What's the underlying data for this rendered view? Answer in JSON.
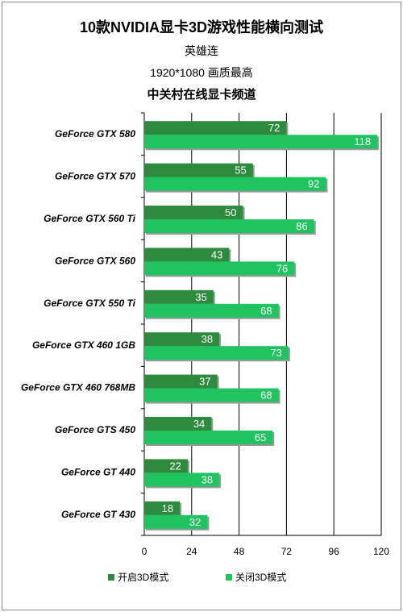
{
  "header": {
    "title": "10款NVIDIA显卡3D游戏性能横向测试",
    "line1": "英雄连",
    "line2": "1920*1080  画质最高",
    "line3": "中关村在线显卡频道"
  },
  "colors": {
    "series_on": "#2e8b3e",
    "series_off": "#1fc360",
    "grid": "#000000"
  },
  "chart_data": {
    "type": "bar",
    "orientation": "horizontal",
    "title": "10款NVIDIA显卡3D游戏性能横向测试",
    "categories": [
      "GeForce GTX 580",
      "GeForce GTX 570",
      "GeForce GTX 560  Ti",
      "GeForce GTX 560",
      "GeForce GTX 550  Ti",
      "GeForce GTX 460  1GB",
      "GeForce GTX 460  768MB",
      "GeForce GTS 450",
      "GeForce GT 440",
      "GeForce GT 430"
    ],
    "series": [
      {
        "name": "开启3D模式",
        "values": [
          72,
          55,
          50,
          43,
          35,
          38,
          37,
          34,
          22,
          18
        ]
      },
      {
        "name": "关闭3D模式",
        "values": [
          118,
          92,
          86,
          76,
          68,
          73,
          68,
          65,
          38,
          32
        ]
      }
    ],
    "xlim": [
      0,
      120
    ],
    "xticks": [
      "0",
      "24",
      "48",
      "72",
      "96",
      "120"
    ],
    "grid": true,
    "legend_position": "bottom"
  }
}
